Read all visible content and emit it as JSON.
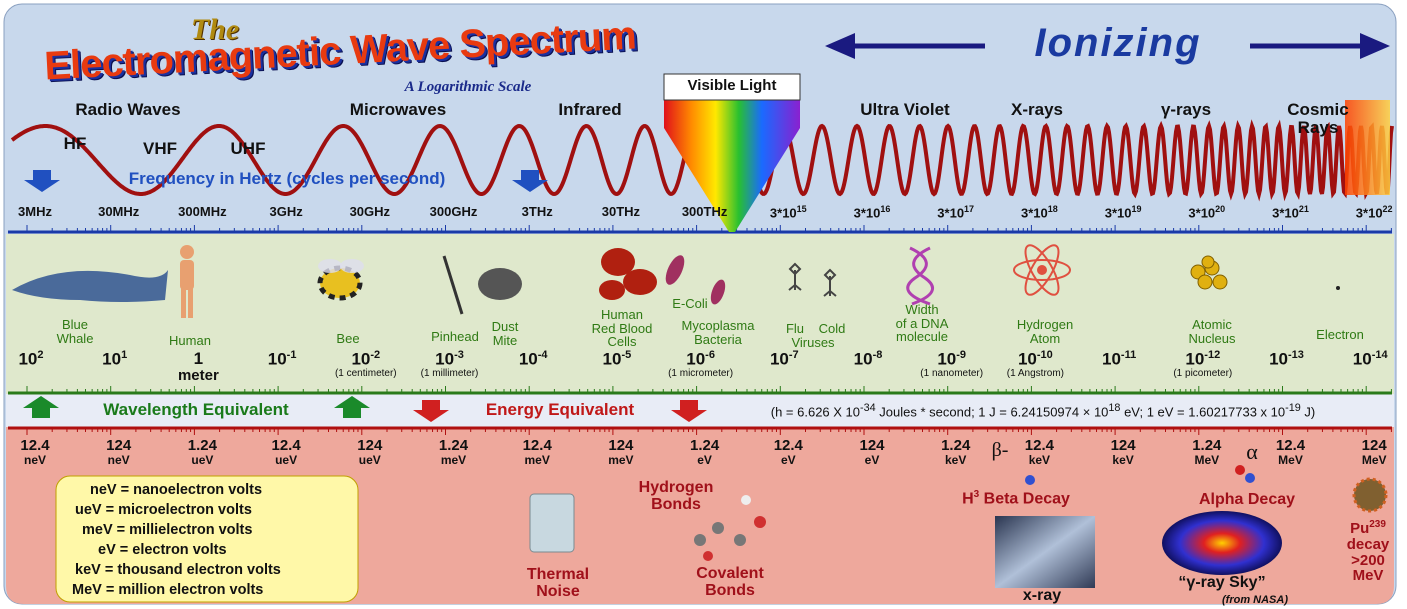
{
  "title": {
    "the": "The",
    "main": "Electromagnetic Wave Spectrum",
    "subtitle": "A Logarithmic Scale"
  },
  "ionizing": "Ionizing",
  "bands": [
    "Radio Waves",
    "Microwaves",
    "Infrared",
    "Visible Light",
    "Ultra Violet",
    "X-rays",
    "γ-rays",
    "Cosmic Rays"
  ],
  "radio_sub": [
    "HF",
    "VHF",
    "UHF"
  ],
  "frequency_label": "Frequency in Hertz (cycles per second)",
  "frequencies": [
    {
      "text": "3MHz"
    },
    {
      "text": "30MHz"
    },
    {
      "text": "300MHz"
    },
    {
      "text": "3GHz"
    },
    {
      "text": "30GHz"
    },
    {
      "text": "300GHz"
    },
    {
      "text": "3THz"
    },
    {
      "text": "30THz"
    },
    {
      "text": "300THz"
    },
    {
      "text": "3*10",
      "sup": "15"
    },
    {
      "text": "3*10",
      "sup": "16"
    },
    {
      "text": "3*10",
      "sup": "17"
    },
    {
      "text": "3*10",
      "sup": "18"
    },
    {
      "text": "3*10",
      "sup": "19"
    },
    {
      "text": "3*10",
      "sup": "20"
    },
    {
      "text": "3*10",
      "sup": "21"
    },
    {
      "text": "3*10",
      "sup": "22"
    }
  ],
  "objects": [
    "Blue\nWhale",
    "Human",
    "Bee",
    "Pinhead",
    "Dust\nMite",
    "Human\nRed Blood\nCells",
    "E-Coli",
    "Mycoplasma\nBacteria",
    "Flu",
    "Cold",
    "Viruses",
    "Width\nof a DNA\nmolecule",
    "Hydrogen\nAtom",
    "Atomic\nNucleus",
    "Electron"
  ],
  "wavelengths": [
    {
      "base": "10",
      "exp": "2"
    },
    {
      "base": "10",
      "exp": "1"
    },
    {
      "base": "1",
      "word": "meter"
    },
    {
      "base": "10",
      "exp": "-1"
    },
    {
      "base": "10",
      "exp": "-2",
      "note": "(1 centimeter)"
    },
    {
      "base": "10",
      "exp": "-3",
      "note": "(1 millimeter)"
    },
    {
      "base": "10",
      "exp": "-4"
    },
    {
      "base": "10",
      "exp": "-5"
    },
    {
      "base": "10",
      "exp": "-6",
      "note": "(1 micrometer)"
    },
    {
      "base": "10",
      "exp": "-7"
    },
    {
      "base": "10",
      "exp": "-8"
    },
    {
      "base": "10",
      "exp": "-9",
      "note": "(1 nanometer)"
    },
    {
      "base": "10",
      "exp": "-10",
      "note": "(1 Angstrom)"
    },
    {
      "base": "10",
      "exp": "-11"
    },
    {
      "base": "10",
      "exp": "-12",
      "note": "(1 picometer)"
    },
    {
      "base": "10",
      "exp": "-13"
    },
    {
      "base": "10",
      "exp": "-14"
    }
  ],
  "wavelength_label": "Wavelength Equivalent",
  "energy_label": "Energy Equivalent",
  "formula": [
    {
      "text": "(h = 6.626 X 10"
    },
    {
      "sup": "-34"
    },
    {
      "text": " Joules * second; 1 J  = 6.24150974 × 10"
    },
    {
      "sup": "18"
    },
    {
      "text": "  eV; 1 eV = 1.60217733 x 10"
    },
    {
      "sup": "-19"
    },
    {
      "text": " J)"
    }
  ],
  "energies": [
    {
      "value": "12.4",
      "unit": "neV"
    },
    {
      "value": "124",
      "unit": "neV"
    },
    {
      "value": "1.24",
      "unit": "ueV"
    },
    {
      "value": "12.4",
      "unit": "ueV"
    },
    {
      "value": "124",
      "unit": "ueV"
    },
    {
      "value": "1.24",
      "unit": "meV"
    },
    {
      "value": "12.4",
      "unit": "meV"
    },
    {
      "value": "124",
      "unit": "meV"
    },
    {
      "value": "1.24",
      "unit": "eV"
    },
    {
      "value": "12.4",
      "unit": "eV"
    },
    {
      "value": "124",
      "unit": "eV"
    },
    {
      "value": "1.24",
      "unit": "keV"
    },
    {
      "value": "12.4",
      "unit": "keV"
    },
    {
      "value": "124",
      "unit": "keV"
    },
    {
      "value": "1.24",
      "unit": "MeV"
    },
    {
      "value": "12.4",
      "unit": "MeV"
    },
    {
      "value": "124",
      "unit": "MeV"
    }
  ],
  "legend": [
    "neV = nanoelectron volts",
    "ueV = microelectron volts",
    "meV = millielectron volts",
    "eV = electron volts",
    "keV = thousand electron volts",
    "MeV = million electron volts"
  ],
  "examples": {
    "thermal": "Thermal\nNoise",
    "hbonds": "Hydrogen\nBonds",
    "covalent": "Covalent\nBonds",
    "beta_symbol": "β-",
    "beta": [
      {
        "text": "H"
      },
      {
        "sup": "3"
      },
      {
        "text": " Beta Decay"
      }
    ],
    "xray": "x-ray",
    "alpha_symbol": "α",
    "alpha": "Alpha Decay",
    "sky": "“γ-ray Sky”",
    "nasa": "(from NASA)",
    "pu": [
      {
        "text": "Pu"
      },
      {
        "sup": "239"
      },
      {
        "text": "\ndecay\n>200\nMeV"
      }
    ]
  }
}
